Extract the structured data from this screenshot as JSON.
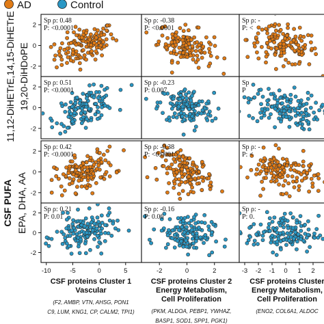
{
  "chart_data": {
    "type": "scatter",
    "legend": {
      "placement": "top-left",
      "entries": [
        {
          "label": "AD",
          "color": "#E07B16"
        },
        {
          "label": "Control",
          "color": "#2A97C4"
        }
      ]
    },
    "row_groups": [
      {
        "label_lines": [
          "11,12-DiHETrE,14,15-DiHETrE",
          "19,20-DiHDoPE"
        ],
        "bold": false
      },
      {
        "label_lines": [
          "CSF PUFA",
          "EPA, DHA, AA"
        ],
        "bold": true
      }
    ],
    "rows": [
      {
        "group": "AD"
      },
      {
        "group": "Control"
      },
      {
        "group": "AD"
      },
      {
        "group": "Control"
      }
    ],
    "columns": [
      {
        "title_lines": [
          "CSF proteins Cluster 1",
          "Vascular"
        ],
        "genes_lines": [
          "(F2, AMBP, VTN, AHSG, PON1",
          "C9, LUM, KNG1, CP, CALM2, TPI1)"
        ],
        "xlim": [
          -11,
          8
        ],
        "xticks": [
          -10,
          -5,
          0,
          5
        ]
      },
      {
        "title_lines": [
          "CSF proteins Cluster 2",
          "Energy Metabolism,",
          "Cell Proliferation"
        ],
        "genes_lines": [
          "(PKM, ALDOA, PEBP1, YWHAZ,",
          "BASP1, SOD1, SPP1, PGK1)"
        ],
        "xlim": [
          -3.3,
          3.8
        ],
        "xticks": [
          -2,
          0,
          2
        ]
      },
      {
        "title_lines": [
          "CSF proteins Cluster",
          "Energy Metabolism,",
          "Cell Proliferation"
        ],
        "genes_lines": [
          "(ENO2, COL6A1, ALDOC"
        ],
        "xlim": [
          -3.4,
          3.6
        ],
        "xticks": [
          -3,
          -2,
          -1,
          0,
          1,
          2,
          3
        ]
      }
    ],
    "yticks": [
      -2,
      0,
      2
    ],
    "ylim": [
      -3,
      3
    ],
    "panels": [
      {
        "row": 0,
        "col": 0,
        "rho": 0.48,
        "p": "<0.0001",
        "stat_lines": [
          "Sp ρ: 0.48",
          "P: <0.0001"
        ]
      },
      {
        "row": 0,
        "col": 1,
        "rho": -0.38,
        "p": "<0.0001",
        "stat_lines": [
          "Sp ρ: -0.38",
          "P: <0.0001"
        ]
      },
      {
        "row": 0,
        "col": 2,
        "rho": -0.3,
        "p": null,
        "stat_lines": [
          "Sp ρ: -",
          "P: <"
        ]
      },
      {
        "row": 1,
        "col": 0,
        "rho": 0.51,
        "p": "<0.0001",
        "stat_lines": [
          "Sp ρ: 0.51",
          "P: <0.0001"
        ]
      },
      {
        "row": 1,
        "col": 1,
        "rho": -0.23,
        "p": "0.007",
        "stat_lines": [
          "Sp ρ: -0.23",
          "P: 0.007"
        ]
      },
      {
        "row": 1,
        "col": 2,
        "rho": -0.3,
        "p": null,
        "stat_lines": [
          "Sp",
          "P"
        ]
      },
      {
        "row": 2,
        "col": 0,
        "rho": 0.42,
        "p": "<0.0001",
        "stat_lines": [
          "Sp ρ: 0.42",
          "P: <0.0001"
        ]
      },
      {
        "row": 2,
        "col": 1,
        "rho": -0.38,
        "p": "<0.0001",
        "stat_lines": [
          "Sp ρ: -0.38",
          "P: <0.0001"
        ]
      },
      {
        "row": 2,
        "col": 2,
        "rho": -0.3,
        "p": null,
        "stat_lines": [
          "Sp ρ: -",
          "P: <"
        ]
      },
      {
        "row": 3,
        "col": 0,
        "rho": 0.21,
        "p": "0.01",
        "stat_lines": [
          "Sp ρ: 0.21",
          "P: 0.01"
        ]
      },
      {
        "row": 3,
        "col": 1,
        "rho": -0.16,
        "p": "0.06",
        "stat_lines": [
          "Sp ρ: -0.16",
          "P: 0.06"
        ]
      },
      {
        "row": 3,
        "col": 2,
        "rho": -0.1,
        "p": "0.",
        "stat_lines": [
          "Sp ρ: -",
          "P: 0."
        ]
      }
    ],
    "points_per_panel": 140,
    "x_sd": [
      2.8,
      1.0,
      1.3
    ],
    "y_sd": 0.95,
    "xlabel": "",
    "ylabel": ""
  }
}
